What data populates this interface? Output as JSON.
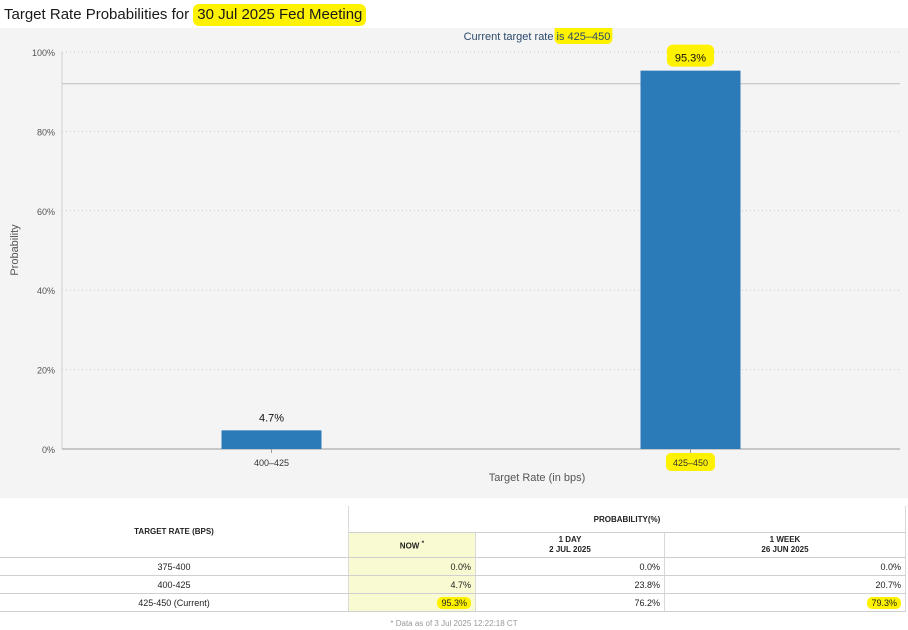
{
  "title": {
    "prefix": "Target Rate Probabilities for ",
    "highlight": "30 Jul 2025 Fed Meeting"
  },
  "chart_data": {
    "type": "bar",
    "subtitle_prefix": "Current target rate ",
    "subtitle_highlight": "is 425–450",
    "categories": [
      "400–425",
      "425–450"
    ],
    "values": [
      4.7,
      95.3
    ],
    "data_labels": [
      "4.7%",
      "95.3%"
    ],
    "xlabel": "Target Rate (in bps)",
    "ylabel": "Probability",
    "ylim": [
      0,
      100
    ],
    "yticks": [
      "0%",
      "20%",
      "40%",
      "60%",
      "80%",
      "100%"
    ],
    "grid": true,
    "bar_color": "#2b7bb9",
    "highlight_color": "#fff200",
    "highlighted_category": "425–450"
  },
  "table": {
    "rate_header": "TARGET RATE (BPS)",
    "prob_header": "PROBABILITY(%)",
    "now_header": "NOW",
    "now_marker": "*",
    "day_header": "1 DAY",
    "day_date": "2 JUL 2025",
    "week_header": "1 WEEK",
    "week_date": "26 JUN 2025",
    "rows": [
      {
        "rate": "375-400",
        "now": "0.0%",
        "day": "0.0%",
        "week": "0.0%"
      },
      {
        "rate": "400-425",
        "now": "4.7%",
        "day": "23.8%",
        "week": "20.7%"
      },
      {
        "rate": "425-450 (Current)",
        "now": "95.3%",
        "day": "76.2%",
        "week": "79.3%"
      }
    ]
  },
  "footnote": "* Data as of 3 Jul 2025 12:22:18 CT"
}
